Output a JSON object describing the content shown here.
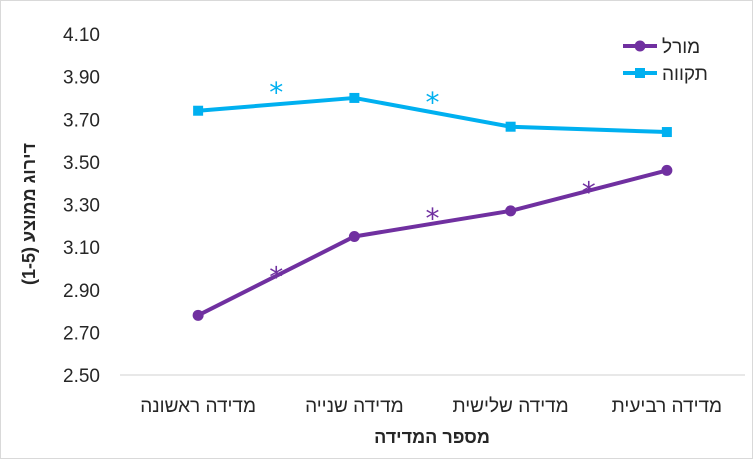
{
  "chart_data": {
    "type": "line",
    "categories": [
      "מדידה ראשונה",
      "מדידה שנייה",
      "מדידה שלישית",
      "מדידה רביעית"
    ],
    "series": [
      {
        "name": "מורל",
        "values": [
          2.78,
          3.15,
          3.27,
          3.46
        ],
        "color": "#7030a0",
        "marker": "circle"
      },
      {
        "name": "תקווה",
        "values": [
          3.74,
          3.8,
          3.665,
          3.64
        ],
        "color": "#00b0f0",
        "marker": "square"
      }
    ],
    "ylim": [
      2.5,
      4.1
    ],
    "yticks": [
      "2.50",
      "2.70",
      "2.90",
      "3.10",
      "3.30",
      "3.50",
      "3.70",
      "3.90",
      "4.10"
    ],
    "xlabel": "מספר המדידה",
    "ylabel": "דירוג ממוצע (1-5)",
    "legend_position": "top-right",
    "annotations": [
      {
        "text": "*",
        "series": "תקווה",
        "between": [
          0,
          1
        ],
        "value": 3.855,
        "color": "#00b0f0"
      },
      {
        "text": "*",
        "series": "תקווה",
        "between": [
          1,
          2
        ],
        "value": 3.81,
        "color": "#00b0f0"
      },
      {
        "text": "*",
        "series": "מורל",
        "between": [
          0,
          1
        ],
        "value": 2.99,
        "color": "#7030a0"
      },
      {
        "text": "*",
        "series": "מורל",
        "between": [
          1,
          2
        ],
        "value": 3.265,
        "color": "#7030a0"
      },
      {
        "text": "*",
        "series": "מורל",
        "between": [
          2,
          3
        ],
        "value": 3.39,
        "color": "#7030a0"
      }
    ]
  }
}
